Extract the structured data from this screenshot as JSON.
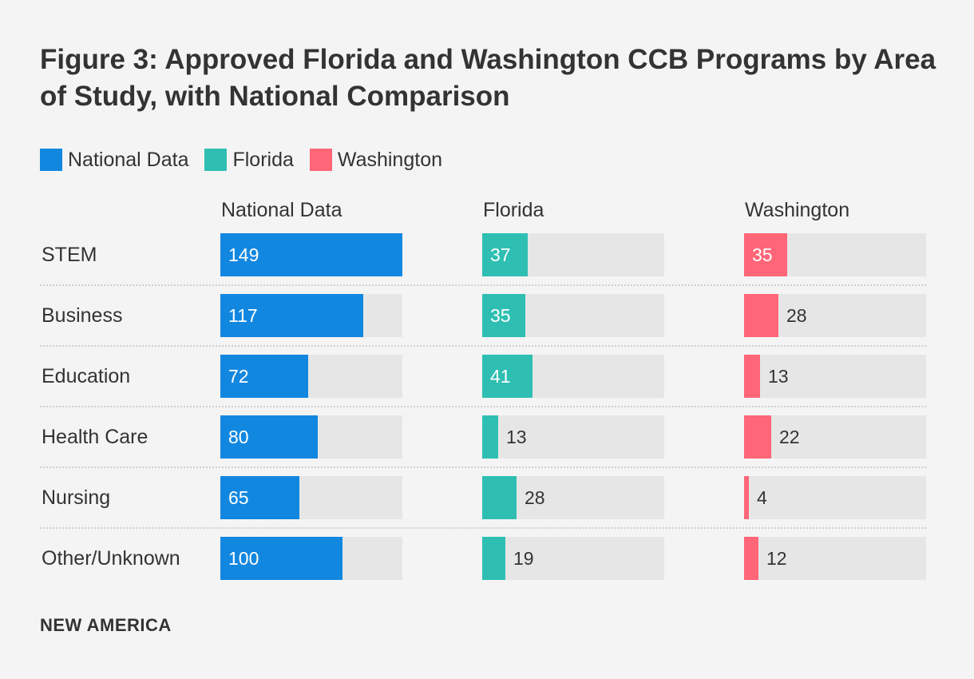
{
  "title": "Figure 3: Approved Florida and Washington CCB Programs by Area of Study, with National Comparison",
  "footer": "NEW AMERICA",
  "chart_data": {
    "type": "bar",
    "title": "Figure 3: Approved Florida and Washington CCB Programs by Area of Study, with National Comparison",
    "xlabel": "",
    "ylabel": "",
    "categories": [
      "STEM",
      "Business",
      "Education",
      "Health Care",
      "Nursing",
      "Other/Unknown"
    ],
    "series": [
      {
        "name": "National Data",
        "color": "#1287e0",
        "max": 149,
        "values": [
          149,
          117,
          72,
          80,
          65,
          100
        ]
      },
      {
        "name": "Florida",
        "color": "#2ebfb2",
        "max": 149,
        "values": [
          37,
          35,
          41,
          13,
          28,
          19
        ]
      },
      {
        "name": "Washington",
        "color": "#ff6678",
        "max": 149,
        "values": [
          35,
          28,
          13,
          22,
          4,
          12
        ]
      }
    ]
  }
}
